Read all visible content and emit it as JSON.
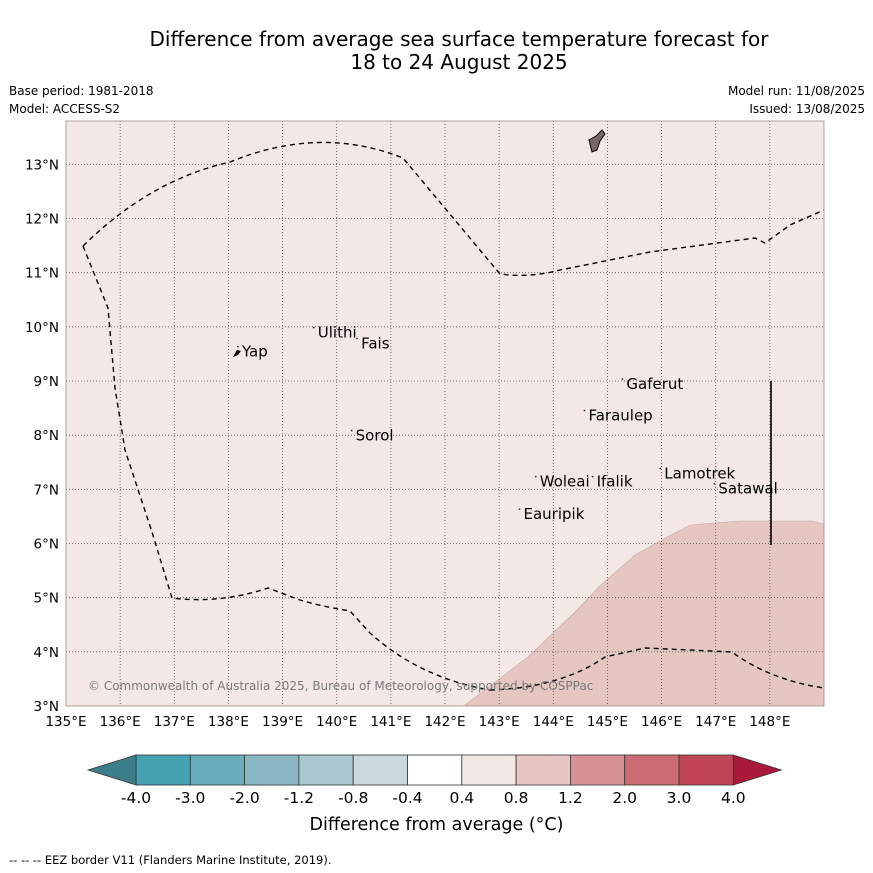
{
  "title": {
    "line1": "Difference from average sea surface temperature forecast for",
    "line2": "18 to 24 August 2025"
  },
  "meta": {
    "base_period": "Base period: 1981-2018",
    "model": "Model: ACCESS-S2",
    "model_run": "Model run: 11/08/2025",
    "issued": "Issued: 13/08/2025"
  },
  "map": {
    "lon_range": [
      135,
      149
    ],
    "lat_range": [
      3,
      13.8
    ],
    "lon_ticks": [
      "135°E",
      "136°E",
      "137°E",
      "138°E",
      "139°E",
      "140°E",
      "141°E",
      "142°E",
      "143°E",
      "144°E",
      "145°E",
      "146°E",
      "147°E",
      "148°E"
    ],
    "lat_ticks": [
      "3°N",
      "4°N",
      "5°N",
      "6°N",
      "7°N",
      "8°N",
      "9°N",
      "10°N",
      "11°N",
      "12°N",
      "13°N"
    ],
    "background_color": "#f4e8e6",
    "warm_region_color": "#e6c6c1",
    "places": [
      {
        "name": "Yap",
        "lon": 138.25,
        "lat": 9.45
      },
      {
        "name": "Ulithi",
        "lon": 139.65,
        "lat": 9.8
      },
      {
        "name": "Fais",
        "lon": 140.45,
        "lat": 9.6
      },
      {
        "name": "Gaferut",
        "lon": 145.35,
        "lat": 8.85
      },
      {
        "name": "Faraulep",
        "lon": 144.65,
        "lat": 8.27
      },
      {
        "name": "Sorol",
        "lon": 140.35,
        "lat": 7.9
      },
      {
        "name": "Woleai",
        "lon": 143.75,
        "lat": 7.05
      },
      {
        "name": "Ifalik",
        "lon": 144.8,
        "lat": 7.05
      },
      {
        "name": "Lamotrek",
        "lon": 146.05,
        "lat": 7.2
      },
      {
        "name": "Satawal",
        "lon": 147.05,
        "lat": 6.92
      },
      {
        "name": "Eauripik",
        "lon": 143.45,
        "lat": 6.45
      }
    ],
    "copyright": "© Commonwealth of Australia 2025, Bureau of Meteorology, supported by COSPPac"
  },
  "colorbar": {
    "tick_labels": [
      "-4.0",
      "-3.0",
      "-2.0",
      "-1.2",
      "-0.8",
      "-0.4",
      "0.4",
      "0.8",
      "1.2",
      "2.0",
      "3.0",
      "4.0"
    ],
    "colors": [
      "#44a2b2",
      "#68adbc",
      "#89b8c4",
      "#a8c9d0",
      "#c9d9de",
      "#ffffff",
      "#f4e8e6",
      "#e6c6c1",
      "#d69197",
      "#cc6b74",
      "#c04555"
    ],
    "under_color": "#3b7e8a",
    "over_color": "#a8193a",
    "label": "Difference from average (°C)"
  },
  "footnote": "--  --  -- EEZ border V11 (Flanders Marine Institute, 2019)."
}
